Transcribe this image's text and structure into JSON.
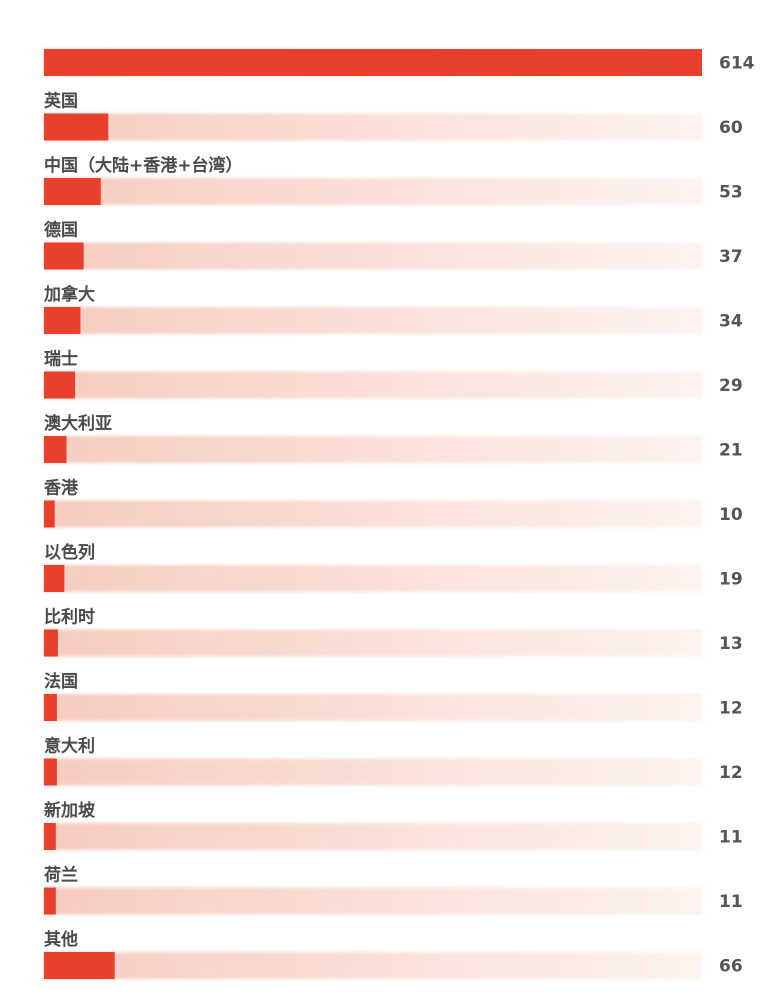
{
  "chart_data": {
    "type": "bar",
    "orientation": "horizontal",
    "categories": [
      "",
      "英国",
      "中国（大陆+香港+台湾）",
      "德国",
      "加拿大",
      "瑞士",
      "澳大利亚",
      "香港",
      "以色列",
      "比利时",
      "法国",
      "意大利",
      "新加坡",
      "荷兰",
      "其他"
    ],
    "values": [
      614,
      60,
      53,
      37,
      34,
      29,
      21,
      10,
      19,
      13,
      12,
      12,
      11,
      11,
      66
    ],
    "xlim": [
      0,
      614
    ],
    "grid": false,
    "legend": "none",
    "colors": {
      "bar": "#e8402a",
      "track": "#f7d3c8",
      "track_fade": "#fdf0eb",
      "label": "#4a4a4a",
      "value": "#555555"
    }
  }
}
